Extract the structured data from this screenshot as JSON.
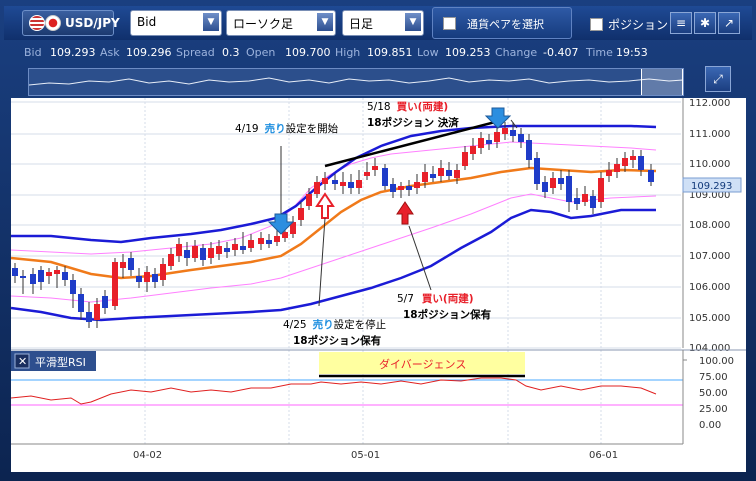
{
  "toolbar": {
    "pair": "USD/JPY",
    "price_type": "Bid",
    "chart_type": "ローソク足",
    "period": "日足",
    "pair_select_button": "通貨ペアを選択",
    "position_label": "ポジション"
  },
  "quote": {
    "bid_label": "Bid",
    "bid": "109.293",
    "ask_label": "Ask",
    "ask": "109.296",
    "spread_label": "Spread",
    "spread": "0.3",
    "open_label": "Open",
    "open": "109.700",
    "high_label": "High",
    "high": "109.851",
    "low_label": "Low",
    "low": "109.253",
    "change_label": "Change",
    "change": "-0.407",
    "time_label": "Time",
    "time": "19:53"
  },
  "price_axis": {
    "ticks": [
      "112.000",
      "111.000",
      "110.000",
      "109.000",
      "108.000",
      "107.000",
      "106.000",
      "105.000",
      "104.000"
    ],
    "current_price": "109.293"
  },
  "date_axis": [
    "04-02",
    "05-01",
    "06-01"
  ],
  "rsi_panel": {
    "title": "平滑型RSI",
    "ticks": [
      "100.00",
      "75.00",
      "50.00",
      "25.00",
      "0.00"
    ],
    "divergence_label": "ダイバージェンス"
  },
  "annotations": {
    "a419_date": "4/19",
    "a419_red": "売り",
    "a419_rest": "設定を開始",
    "a518_date": "5/18",
    "a518_red": "買い(両建)",
    "a518_line2": "18ポジション 決済",
    "a425_date": "4/25",
    "a425_red": "売り",
    "a425_rest": "設定を停止",
    "a425_line2": "18ポジション保有",
    "a57_date": "5/7",
    "a57_red": "買い(両建)",
    "a57_line2": "18ポジション保有"
  },
  "colors": {
    "up_candle": "#e8202a",
    "down_candle": "#1f3cc8",
    "bollinger_outer": "#1b1bd6",
    "bollinger_inner": "#ff80ff",
    "moving_average": "#f07a1a",
    "rsi_line": "#e02020"
  }
}
